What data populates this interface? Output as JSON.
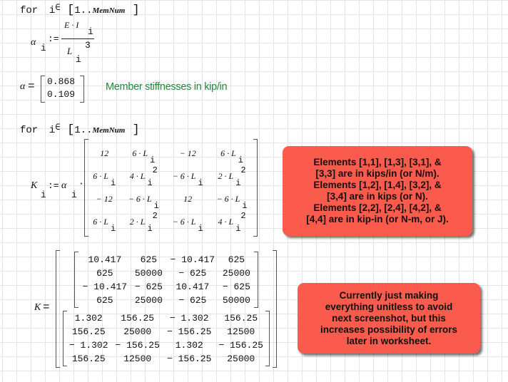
{
  "loop1": {
    "keyword": "for",
    "var": "i",
    "in_symbol": "∈",
    "range": "1..",
    "range_end": "MemNum"
  },
  "alpha_def": {
    "lhs": "α",
    "lhs_sub": "i",
    "assign": ":=",
    "num": "E · I",
    "num_sub": "i",
    "den": "L",
    "den_sub": "i",
    "den_sup": "3"
  },
  "alpha_result": {
    "lhs": "α",
    "eq": "=",
    "values": [
      "0.868",
      "0.109"
    ],
    "comment": "Member stiffnesses in kip/in",
    "comment_color": "#1f8a3c"
  },
  "loop2": {
    "keyword": "for",
    "var": "i",
    "in_symbol": "∈",
    "range": "1..",
    "range_end": "MemNum"
  },
  "k_def": {
    "lhs": "K",
    "lhs_sub": "i",
    "assign": ":=",
    "coef": "α",
    "coef_sub": "i",
    "dot": "·",
    "matrix": [
      [
        {
          "b": "12"
        },
        {
          "b": "6 · L",
          "s": "i"
        },
        {
          "b": "− 12"
        },
        {
          "b": "6 · L",
          "s": "i"
        }
      ],
      [
        {
          "b": "6 · L",
          "s": "i"
        },
        {
          "b": "4 · L",
          "s": "i",
          "p": "2"
        },
        {
          "b": "− 6 · L",
          "s": "i"
        },
        {
          "b": "2 · L",
          "s": "i",
          "p": "2"
        }
      ],
      [
        {
          "b": "− 12"
        },
        {
          "b": "− 6 · L",
          "s": "i"
        },
        {
          "b": "12"
        },
        {
          "b": "− 6 · L",
          "s": "i"
        }
      ],
      [
        {
          "b": "6 · L",
          "s": "i"
        },
        {
          "b": "2 · L",
          "s": "i",
          "p": "2"
        },
        {
          "b": "− 6 · L",
          "s": "i"
        },
        {
          "b": "4 · L",
          "s": "i",
          "p": "2"
        }
      ]
    ]
  },
  "k_result": {
    "lhs": "K",
    "eq": "=",
    "matrices": [
      [
        [
          "10.417",
          "625",
          "− 10.417",
          "625"
        ],
        [
          "625",
          "50000",
          "− 625",
          "25000"
        ],
        [
          "− 10.417",
          "− 625",
          "10.417",
          "− 625"
        ],
        [
          "625",
          "25000",
          "− 625",
          "50000"
        ]
      ],
      [
        [
          "1.302",
          "156.25",
          "− 1.302",
          "156.25"
        ],
        [
          "156.25",
          "25000",
          "− 156.25",
          "12500"
        ],
        [
          "− 1.302",
          "− 156.25",
          "1.302",
          "− 156.25"
        ],
        [
          "156.25",
          "12500",
          "− 156.25",
          "25000"
        ]
      ]
    ]
  },
  "notes": {
    "color": "#fb5b4d",
    "units": [
      "Elements [1,1], [1,3], [3,1], &",
      "[3,3] are in kips/in (or N/m).",
      "Elements [1,2], [1,4], [3,2], &",
      "[3,4] are in kips (or N).",
      "Elements [2,2], [2,4], [4,2], &",
      "[4,4] are in kip-in (or N-m, or J)."
    ],
    "unitless": [
      "Currently just making",
      "everything unitless to avoid",
      "next screenshot, but this",
      "increases possibility of errors",
      "later in worksheet."
    ]
  }
}
